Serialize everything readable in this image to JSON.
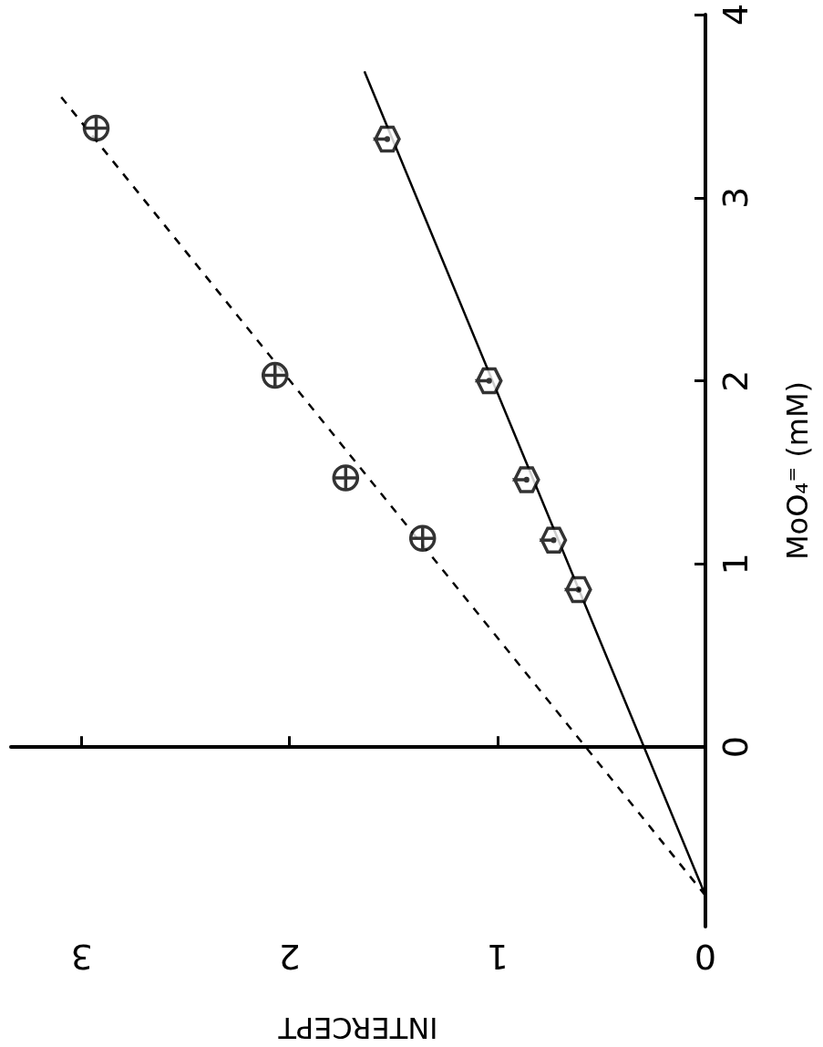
{
  "chart_data": {
    "type": "scatter",
    "xlabel": "INTERCEPT",
    "ylabel": "MoO₄⁼ (mM)",
    "xlim": [
      3.34,
      0
    ],
    "xticks": [
      0,
      1,
      2,
      3
    ],
    "ylim": [
      -0.98,
      4
    ],
    "yticks": [
      0,
      1,
      2,
      3,
      4
    ],
    "series": [
      {
        "color": "#000000",
        "x": [
          1.53,
          1.04,
          0.86,
          0.73,
          0.61
        ],
        "values": [
          3.32,
          2.0,
          1.46,
          1.13,
          0.86
        ]
      },
      {
        "marker": "circle",
        "color": "#000000",
        "x": [
          2.93,
          2.07,
          1.73,
          1.36
        ],
        "values": [
          3.38,
          2.03,
          1.47,
          1.14
        ]
      },
      {
        "type": "line",
        "marker": "none",
        "line_style": "solid",
        "color": "#000000",
        "x": [
          0,
          1.64
        ],
        "values": [
          -0.81,
          3.69
        ]
      },
      {
        "type": "line",
        "marker": "none",
        "line_style": "dashed",
        "color": "#000000",
        "x": [
          0,
          3.12
        ],
        "values": [
          -0.81,
          3.58
        ]
      }
    ]
  }
}
